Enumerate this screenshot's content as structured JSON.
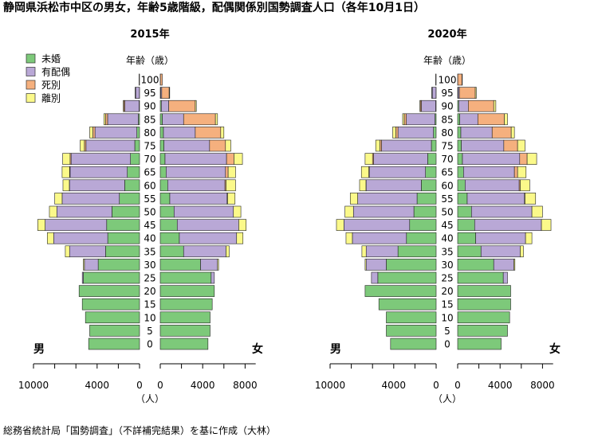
{
  "title": "静岡県浜松市中区の男女，年齢5歳階級，配偶関係別国勢調査人口（各年10月1日）",
  "source": "総務省統計局「国勢調査」（不詳補完結果）を基に作成（大林）",
  "axis_unit": "（人）",
  "age_axis_label": "年齢（歳）",
  "male_label": "男",
  "female_label": "女",
  "legend": [
    {
      "key": "unmarried",
      "label": "未婚",
      "color": "#7dc97a"
    },
    {
      "key": "married",
      "label": "有配偶",
      "color": "#b9a8d6"
    },
    {
      "key": "widowed",
      "label": "死別",
      "color": "#f5b07e"
    },
    {
      "key": "divorced",
      "label": "離別",
      "color": "#fbf98a"
    }
  ],
  "chart_data": [
    {
      "type": "population-pyramid",
      "title": "2015年",
      "age_labels": [
        "0",
        "5",
        "10",
        "15",
        "20",
        "25",
        "30",
        "35",
        "40",
        "45",
        "50",
        "55",
        "60",
        "65",
        "70",
        "75",
        "80",
        "85",
        "90",
        "95",
        "100"
      ],
      "male_ticks": [
        "10000",
        "4000",
        "0"
      ],
      "female_ticks": [
        "0",
        "4000",
        "8000"
      ],
      "male": {
        "unmarried": [
          4800,
          4700,
          5100,
          5400,
          5700,
          5300,
          3900,
          3200,
          3000,
          3100,
          2600,
          1900,
          1400,
          1150,
          850,
          450,
          250,
          110,
          40,
          10,
          0
        ],
        "married": [
          0,
          0,
          0,
          0,
          0,
          100,
          1300,
          3400,
          5100,
          5800,
          5200,
          5400,
          5200,
          5400,
          5600,
          4600,
          3950,
          2900,
          1350,
          350,
          30
        ],
        "widowed": [
          0,
          0,
          0,
          0,
          0,
          0,
          0,
          0,
          0,
          0,
          0,
          0,
          20,
          50,
          100,
          150,
          200,
          200,
          100,
          40,
          10
        ],
        "divorced": [
          0,
          0,
          0,
          0,
          0,
          0,
          100,
          400,
          600,
          700,
          700,
          700,
          600,
          700,
          700,
          400,
          300,
          150,
          50,
          10,
          0
        ]
      },
      "female": {
        "unmarried": [
          4500,
          4700,
          4700,
          4900,
          5100,
          4800,
          3800,
          2200,
          1800,
          1600,
          1300,
          900,
          700,
          550,
          450,
          350,
          300,
          200,
          100,
          40,
          10
        ],
        "married": [
          0,
          0,
          0,
          0,
          0,
          300,
          1600,
          4000,
          5400,
          5800,
          5600,
          5400,
          5400,
          5600,
          5800,
          4300,
          3000,
          2000,
          700,
          100,
          0
        ],
        "widowed": [
          0,
          0,
          0,
          0,
          0,
          0,
          0,
          0,
          0,
          0,
          0,
          50,
          100,
          250,
          700,
          1500,
          2400,
          3000,
          2500,
          700,
          180
        ],
        "divorced": [
          0,
          0,
          0,
          0,
          0,
          0,
          100,
          300,
          600,
          700,
          700,
          700,
          900,
          700,
          800,
          500,
          300,
          200,
          100,
          50,
          0
        ]
      }
    },
    {
      "type": "population-pyramid",
      "title": "2020年",
      "age_labels": [
        "0",
        "5",
        "10",
        "15",
        "20",
        "25",
        "30",
        "35",
        "40",
        "45",
        "50",
        "55",
        "60",
        "65",
        "70",
        "75",
        "80",
        "85",
        "90",
        "95",
        "100"
      ],
      "male_ticks": [
        "10000",
        "4000",
        "0"
      ],
      "female_ticks": [
        "0",
        "4000",
        "8000"
      ],
      "male": {
        "unmarried": [
          4300,
          4700,
          4700,
          5400,
          6700,
          5500,
          4700,
          3600,
          2800,
          2500,
          2100,
          1800,
          1400,
          1000,
          800,
          450,
          250,
          110,
          40,
          10,
          0
        ],
        "married": [
          0,
          0,
          0,
          0,
          0,
          600,
          1900,
          3000,
          5100,
          6200,
          5700,
          5600,
          5200,
          5300,
          5100,
          4700,
          3350,
          2700,
          1350,
          350,
          30
        ],
        "widowed": [
          0,
          0,
          0,
          0,
          0,
          0,
          0,
          0,
          0,
          0,
          0,
          0,
          20,
          50,
          100,
          150,
          200,
          200,
          100,
          40,
          10
        ],
        "divorced": [
          0,
          0,
          0,
          0,
          0,
          0,
          100,
          400,
          600,
          700,
          800,
          700,
          600,
          700,
          700,
          400,
          300,
          150,
          50,
          10,
          0
        ]
      },
      "female": {
        "unmarried": [
          4100,
          4700,
          4900,
          5000,
          5000,
          4300,
          3400,
          2200,
          1700,
          1600,
          1300,
          900,
          700,
          550,
          450,
          350,
          300,
          200,
          100,
          40,
          10
        ],
        "married": [
          0,
          0,
          0,
          0,
          0,
          400,
          1900,
          3700,
          4700,
          6300,
          5700,
          5400,
          5100,
          4800,
          5400,
          4000,
          2950,
          1700,
          900,
          120,
          0
        ],
        "widowed": [
          0,
          0,
          0,
          0,
          0,
          0,
          0,
          0,
          0,
          0,
          0,
          50,
          100,
          300,
          700,
          1300,
          1800,
          2500,
          2400,
          1500,
          400
        ],
        "divorced": [
          0,
          0,
          0,
          0,
          0,
          0,
          100,
          300,
          600,
          900,
          1000,
          1000,
          900,
          800,
          900,
          700,
          300,
          300,
          200,
          100,
          30
        ]
      }
    }
  ]
}
